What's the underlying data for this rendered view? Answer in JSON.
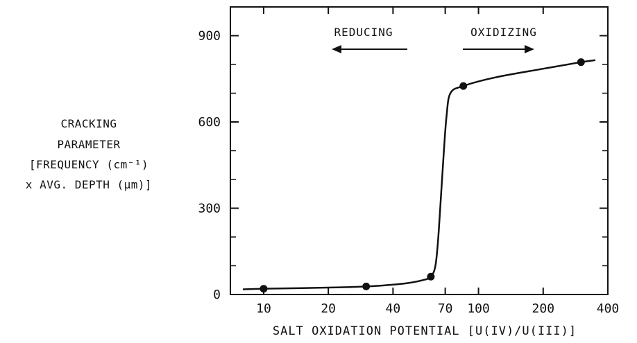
{
  "chart_data": {
    "type": "line",
    "title": "",
    "xlabel": "SALT OXIDATION POTENTIAL [U(IV)/U(III)]",
    "ylabel_lines": [
      "CRACKING",
      "PARAMETER",
      "[FREQUENCY (cm⁻¹)",
      "x AVG. DEPTH (μm)]"
    ],
    "x_scale": "log",
    "xlim": [
      7,
      400
    ],
    "ylim": [
      0,
      1000
    ],
    "x_ticks": [
      10,
      20,
      40,
      70,
      100,
      200,
      400
    ],
    "x_tick_labels": [
      "10",
      "20",
      "40",
      "70",
      "100",
      "200",
      "400"
    ],
    "y_ticks": [
      0,
      300,
      600,
      900
    ],
    "y_tick_labels": [
      "0",
      "300",
      "600",
      "900"
    ],
    "y_minor_ticks": [
      100,
      200,
      400,
      500,
      700,
      800
    ],
    "grid": false,
    "annotations": {
      "reducing": "REDUCING",
      "oxidizing": "OXIDIZING"
    },
    "series": [
      {
        "points": [
          {
            "x": 10,
            "y": 20
          },
          {
            "x": 30,
            "y": 28
          },
          {
            "x": 60,
            "y": 62
          },
          {
            "x": 85,
            "y": 725
          },
          {
            "x": 300,
            "y": 808
          }
        ]
      }
    ],
    "curve": [
      {
        "x": 8,
        "y": 18
      },
      {
        "x": 10,
        "y": 20
      },
      {
        "x": 20,
        "y": 24
      },
      {
        "x": 30,
        "y": 28
      },
      {
        "x": 45,
        "y": 38
      },
      {
        "x": 55,
        "y": 50
      },
      {
        "x": 60,
        "y": 62
      },
      {
        "x": 63,
        "y": 100
      },
      {
        "x": 65,
        "y": 200
      },
      {
        "x": 67,
        "y": 350
      },
      {
        "x": 69,
        "y": 500
      },
      {
        "x": 71,
        "y": 620
      },
      {
        "x": 74,
        "y": 700
      },
      {
        "x": 85,
        "y": 725
      },
      {
        "x": 120,
        "y": 755
      },
      {
        "x": 200,
        "y": 785
      },
      {
        "x": 300,
        "y": 808
      },
      {
        "x": 350,
        "y": 815
      }
    ]
  }
}
